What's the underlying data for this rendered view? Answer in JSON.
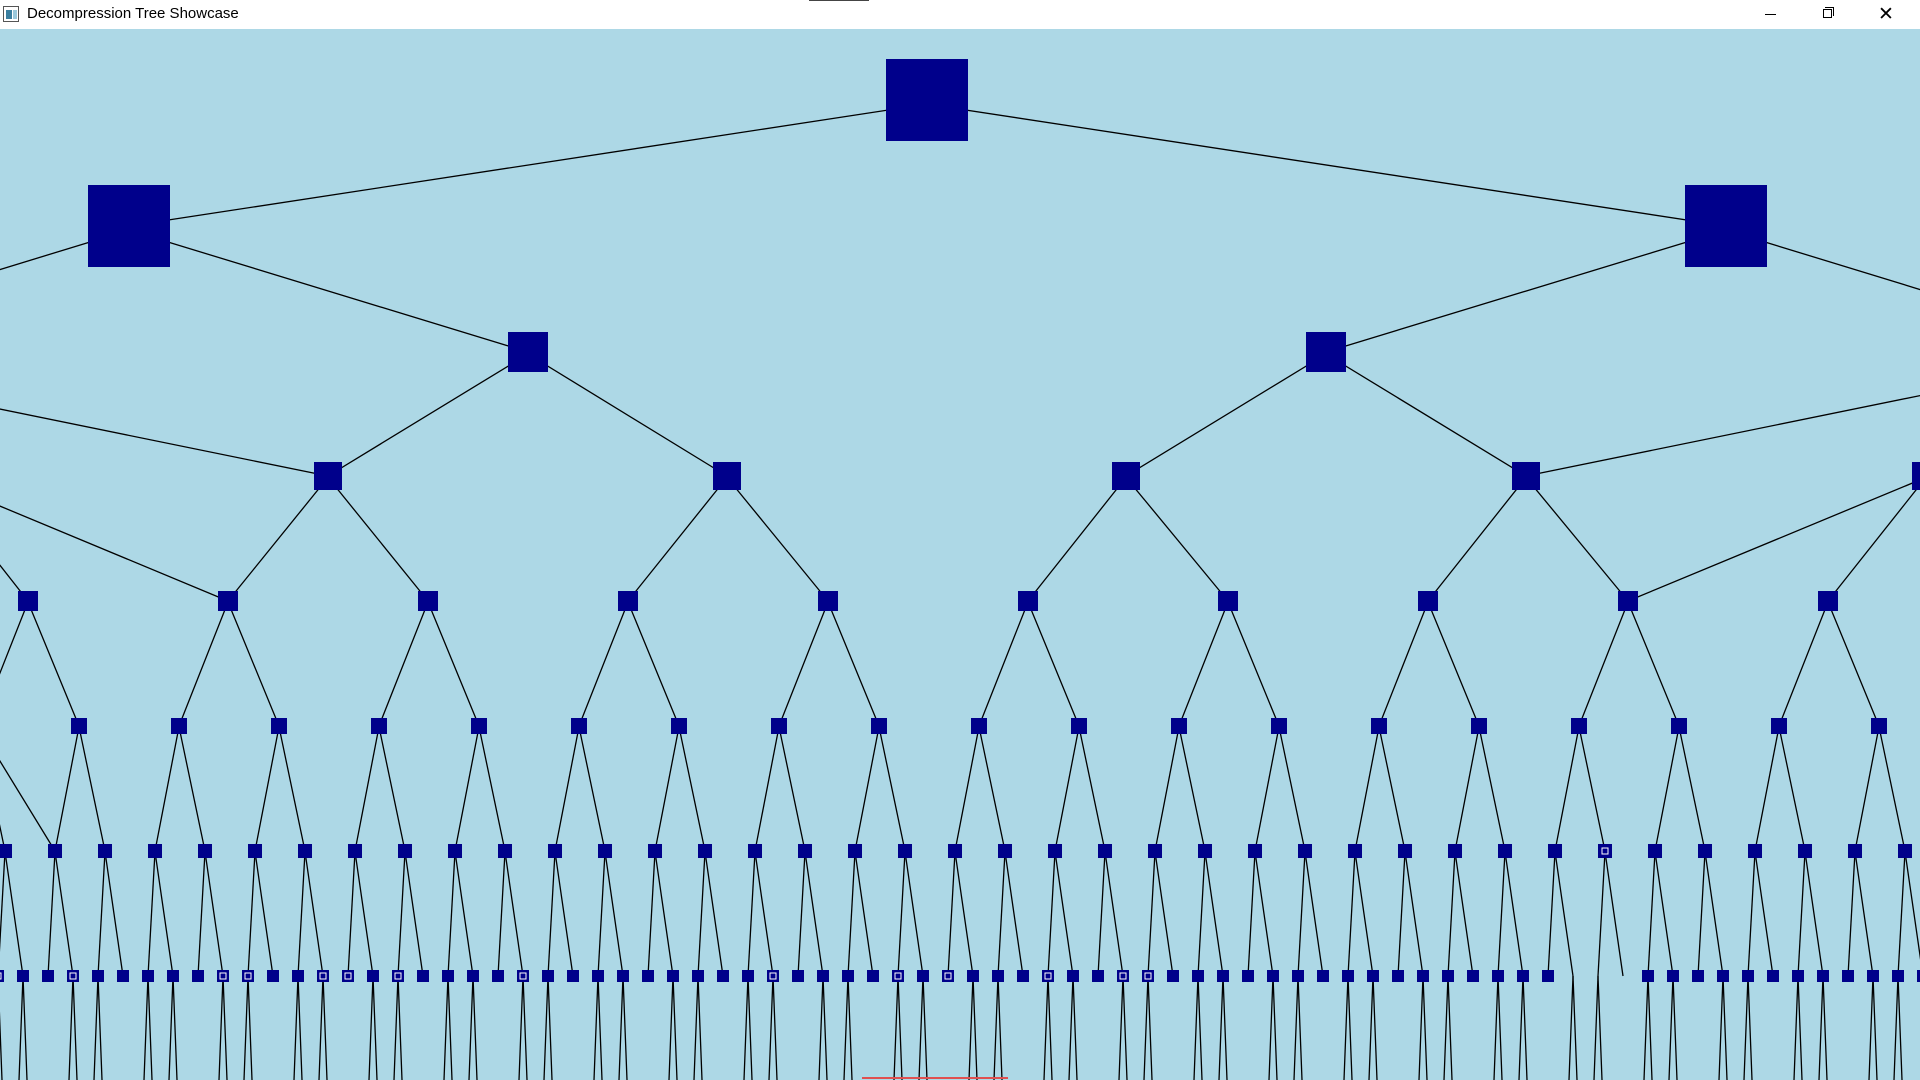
{
  "window": {
    "title": "Decompression Tree Showcase",
    "controls": {
      "minimize": "minimize-icon",
      "maximize": "maximize-icon",
      "close": "close-icon"
    }
  },
  "colors": {
    "background": "#add8e6",
    "node_fill": "#00008b",
    "edge": "#000000",
    "leaf_glyph": "#ffffff"
  },
  "tree": {
    "description_levels": 9,
    "leaf_glyphs_row": [
      "□",
      "□",
      "□",
      "□",
      "□",
      "□",
      "□",
      "□",
      "□",
      "□",
      "□",
      "□",
      "□",
      "□",
      "□",
      "□",
      "□",
      "□"
    ]
  }
}
